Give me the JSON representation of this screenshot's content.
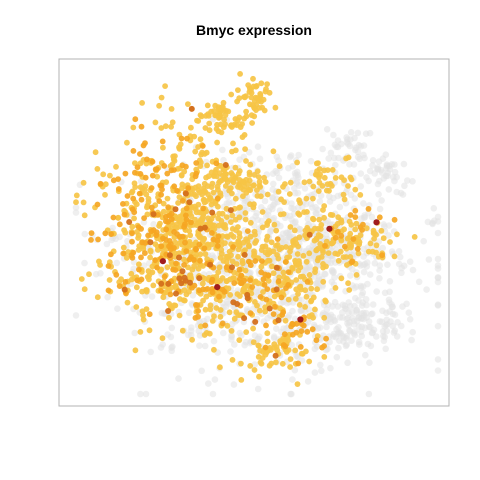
{
  "chart_data": {
    "type": "scatter",
    "title": "Bmyc expression",
    "xlabel": "",
    "ylabel": "",
    "axes_visible": false,
    "grid": false,
    "legend": "none",
    "colors": {
      "unexpressed": "#e2e2e2",
      "low": "#f6c445",
      "mid": "#f5a623",
      "high": "#d4701c",
      "max": "#a11d1d",
      "frame": "#b3b3b3"
    },
    "point_clouds": [
      {
        "name": "gray-background",
        "level": "unexpressed",
        "seed": 11,
        "blobs": [
          {
            "cx": 0.55,
            "cy": 0.62,
            "rx": 0.4,
            "ry": 0.31,
            "n": 650
          },
          {
            "cx": 0.74,
            "cy": 0.79,
            "rx": 0.16,
            "ry": 0.08,
            "n": 130
          },
          {
            "cx": 0.7,
            "cy": 0.55,
            "rx": 0.18,
            "ry": 0.1,
            "n": 120
          },
          {
            "cx": 0.45,
            "cy": 0.6,
            "rx": 0.34,
            "ry": 0.28,
            "n": 260
          },
          {
            "cx": 0.58,
            "cy": 0.37,
            "rx": 0.2,
            "ry": 0.12,
            "n": 100
          },
          {
            "cx": 0.76,
            "cy": 0.24,
            "rx": 0.06,
            "ry": 0.06,
            "n": 30
          },
          {
            "cx": 0.85,
            "cy": 0.32,
            "rx": 0.07,
            "ry": 0.07,
            "n": 40
          }
        ]
      },
      {
        "name": "expressed-low",
        "level": "low",
        "seed": 23,
        "blobs": [
          {
            "cx": 0.3,
            "cy": 0.42,
            "rx": 0.22,
            "ry": 0.25,
            "n": 380
          },
          {
            "cx": 0.28,
            "cy": 0.6,
            "rx": 0.22,
            "ry": 0.2,
            "n": 260
          },
          {
            "cx": 0.5,
            "cy": 0.6,
            "rx": 0.2,
            "ry": 0.22,
            "n": 180
          },
          {
            "cx": 0.4,
            "cy": 0.15,
            "rx": 0.1,
            "ry": 0.05,
            "n": 60
          },
          {
            "cx": 0.5,
            "cy": 0.08,
            "rx": 0.05,
            "ry": 0.05,
            "n": 40
          },
          {
            "cx": 0.45,
            "cy": 0.34,
            "rx": 0.12,
            "ry": 0.05,
            "n": 55
          },
          {
            "cx": 0.74,
            "cy": 0.52,
            "rx": 0.14,
            "ry": 0.1,
            "n": 110
          },
          {
            "cx": 0.56,
            "cy": 0.86,
            "rx": 0.1,
            "ry": 0.08,
            "n": 60
          },
          {
            "cx": 0.68,
            "cy": 0.35,
            "rx": 0.08,
            "ry": 0.1,
            "n": 45
          },
          {
            "cx": 0.62,
            "cy": 0.66,
            "rx": 0.1,
            "ry": 0.1,
            "n": 50
          }
        ]
      },
      {
        "name": "expressed-mid",
        "level": "mid",
        "seed": 37,
        "blobs": [
          {
            "cx": 0.22,
            "cy": 0.45,
            "rx": 0.15,
            "ry": 0.25,
            "n": 130
          },
          {
            "cx": 0.4,
            "cy": 0.65,
            "rx": 0.2,
            "ry": 0.15,
            "n": 90
          },
          {
            "cx": 0.6,
            "cy": 0.82,
            "rx": 0.08,
            "ry": 0.08,
            "n": 25
          },
          {
            "cx": 0.78,
            "cy": 0.52,
            "rx": 0.1,
            "ry": 0.08,
            "n": 20
          }
        ]
      },
      {
        "name": "expressed-high",
        "level": "high",
        "seed": 41,
        "blobs": [
          {
            "cx": 0.3,
            "cy": 0.55,
            "rx": 0.2,
            "ry": 0.22,
            "n": 28
          },
          {
            "cx": 0.55,
            "cy": 0.7,
            "rx": 0.15,
            "ry": 0.15,
            "n": 12
          }
        ]
      }
    ],
    "highlights": [
      {
        "x": 0.7,
        "y": 0.49,
        "level": "max"
      },
      {
        "x": 0.83,
        "y": 0.47,
        "level": "max"
      },
      {
        "x": 0.62,
        "y": 0.77,
        "level": "max"
      },
      {
        "x": 0.24,
        "y": 0.59,
        "level": "max"
      },
      {
        "x": 0.39,
        "y": 0.67,
        "level": "max"
      },
      {
        "x": 0.32,
        "y": 0.12,
        "level": "high"
      }
    ]
  }
}
